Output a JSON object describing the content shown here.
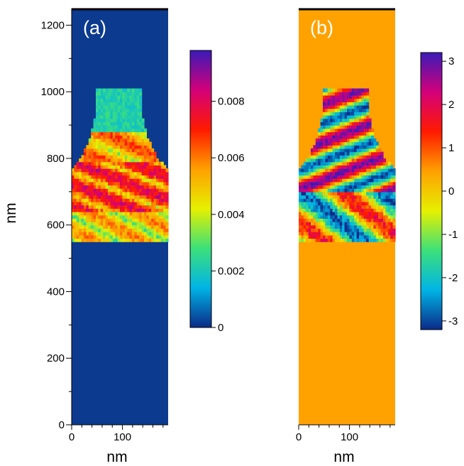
{
  "chart_data": [
    {
      "type": "heatmap",
      "panel_label": "(a)",
      "xlabel": "nm",
      "ylabel": "nm",
      "xlim": [
        0,
        190
      ],
      "ylim": [
        0,
        1250
      ],
      "x_ticks": [
        0,
        100
      ],
      "x_tick_labels": [
        "0",
        "100"
      ],
      "y_ticks": [
        0,
        200,
        400,
        600,
        800,
        1000,
        1200
      ],
      "y_tick_labels": [
        "0",
        "200",
        "400",
        "600",
        "800",
        "1000",
        "1200"
      ],
      "background_color": "#0b3a8f",
      "colorscale": [
        "#0b2a88",
        "#00b4e6",
        "#3ce07a",
        "#e6f000",
        "#ffa000",
        "#ff1a00",
        "#d4007a",
        "#3a1ab8"
      ],
      "colorbar": {
        "range": [
          0,
          0.0098
        ],
        "ticks": [
          0,
          0.002,
          0.004,
          0.006,
          0.008
        ],
        "tick_labels": [
          "0",
          "0.002",
          "0.004",
          "0.006",
          "0.008"
        ]
      },
      "shape_profile": [
        {
          "y": 550,
          "x_left": 0,
          "x_right": 190
        },
        {
          "y": 700,
          "x_left": 0,
          "x_right": 190
        },
        {
          "y": 770,
          "x_left": 0,
          "x_right": 190
        },
        {
          "y": 800,
          "x_left": 18,
          "x_right": 170
        },
        {
          "y": 860,
          "x_left": 36,
          "x_right": 150
        },
        {
          "y": 920,
          "x_left": 45,
          "x_right": 140
        },
        {
          "y": 1010,
          "x_left": 50,
          "x_right": 138
        }
      ]
    },
    {
      "type": "heatmap",
      "panel_label": "(b)",
      "xlabel": "nm",
      "xlim": [
        0,
        190
      ],
      "ylim": [
        0,
        1250
      ],
      "x_ticks": [
        0,
        100
      ],
      "x_tick_labels": [
        "0",
        "100"
      ],
      "background_color": "#ffa200",
      "colorscale": [
        "#0b2a88",
        "#00b4e6",
        "#3ce07a",
        "#e6f000",
        "#ffa000",
        "#ff1a00",
        "#d4007a",
        "#3a1ab8"
      ],
      "colorbar": {
        "range": [
          -3.2,
          3.2
        ],
        "ticks": [
          -3,
          -2,
          -1,
          0,
          1,
          2,
          3
        ],
        "tick_labels": [
          "-3",
          "-2",
          "-1",
          "0",
          "1",
          "2",
          "3"
        ]
      },
      "shape_profile": [
        {
          "y": 550,
          "x_left": 0,
          "x_right": 190
        },
        {
          "y": 700,
          "x_left": 0,
          "x_right": 190
        },
        {
          "y": 770,
          "x_left": 0,
          "x_right": 190
        },
        {
          "y": 800,
          "x_left": 18,
          "x_right": 170
        },
        {
          "y": 860,
          "x_left": 36,
          "x_right": 150
        },
        {
          "y": 920,
          "x_left": 45,
          "x_right": 140
        },
        {
          "y": 1010,
          "x_left": 50,
          "x_right": 138
        }
      ]
    }
  ]
}
